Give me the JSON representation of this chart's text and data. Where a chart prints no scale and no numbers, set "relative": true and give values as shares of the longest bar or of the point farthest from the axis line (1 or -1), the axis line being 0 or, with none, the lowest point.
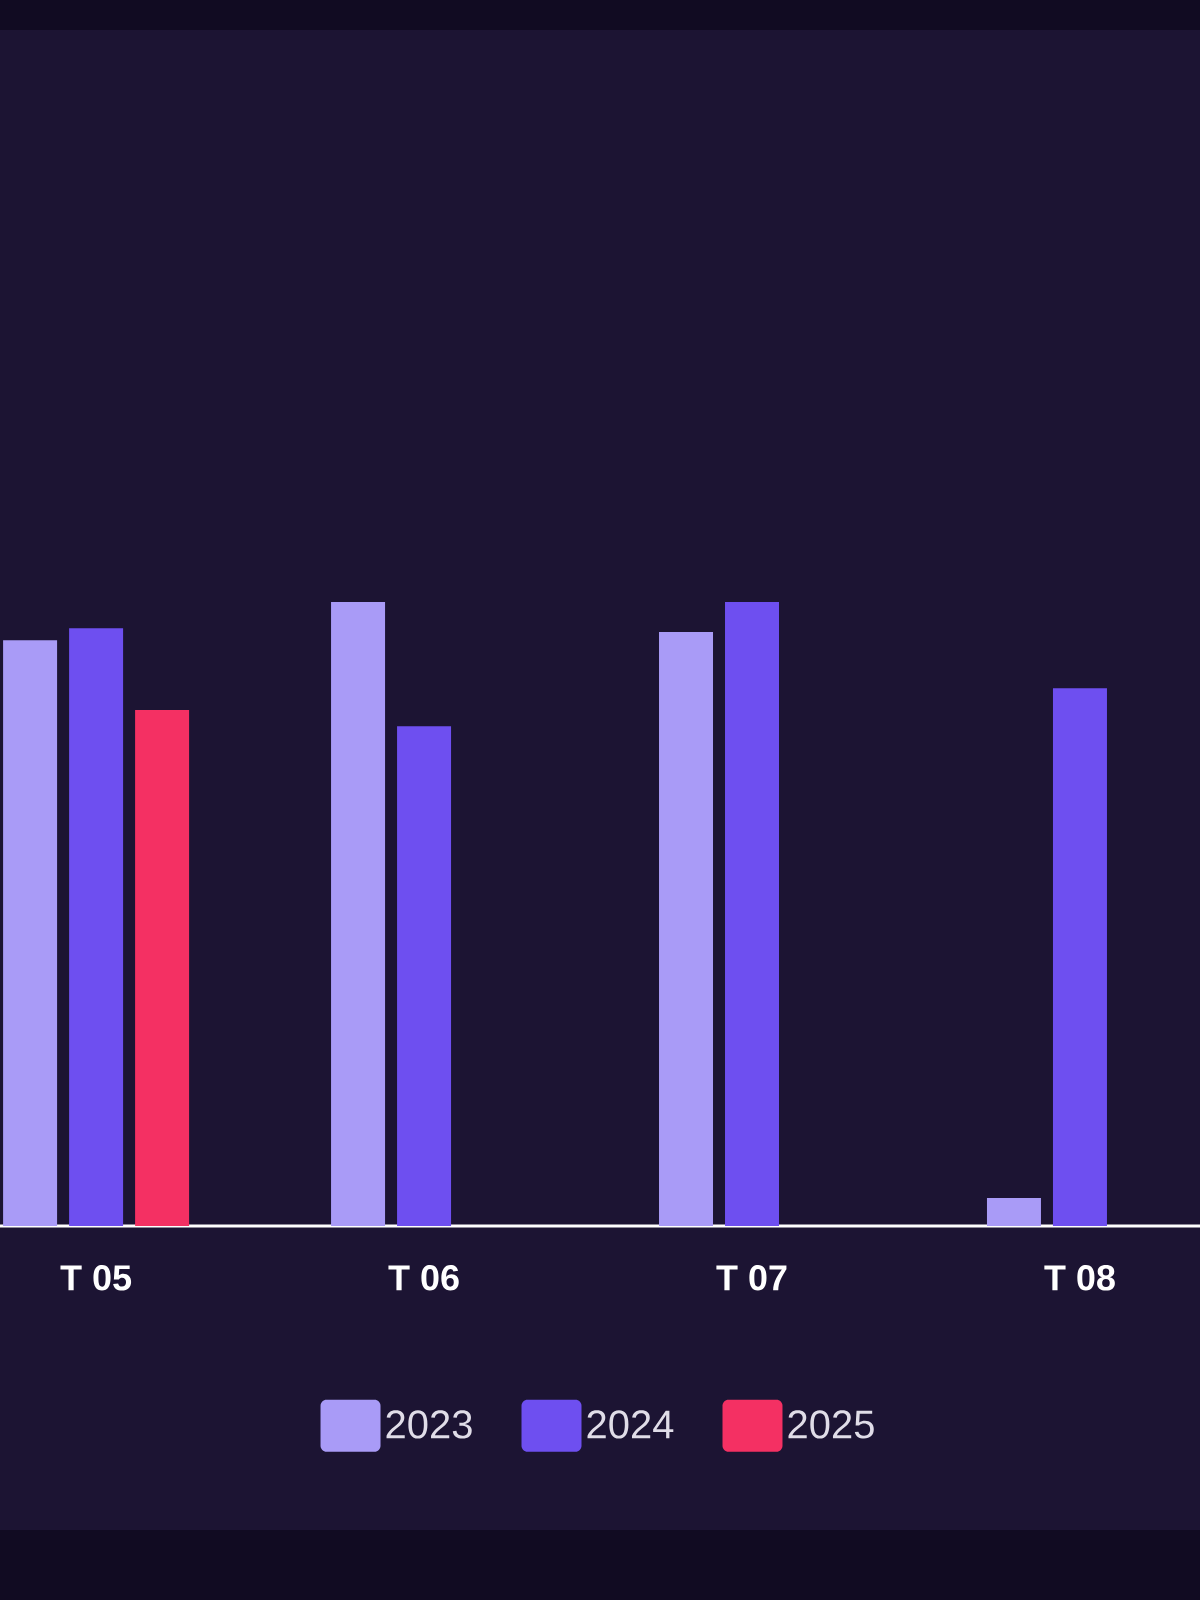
{
  "chart_data": {
    "type": "bar",
    "relative": true,
    "categories": [
      "T 05",
      "T 06",
      "T 07",
      "T 08"
    ],
    "series": [
      {
        "name": "2023",
        "color": "#a99bf7",
        "values": [
          0.939,
          1,
          0.952,
          0.045
        ]
      },
      {
        "name": "2024",
        "color": "#6e4ff0",
        "values": [
          0.958,
          0.801,
          1,
          0.862
        ]
      },
      {
        "name": "2025",
        "color": "#f43063",
        "values": [
          0.827,
          null,
          null,
          null
        ]
      }
    ],
    "legend": "bottom"
  }
}
